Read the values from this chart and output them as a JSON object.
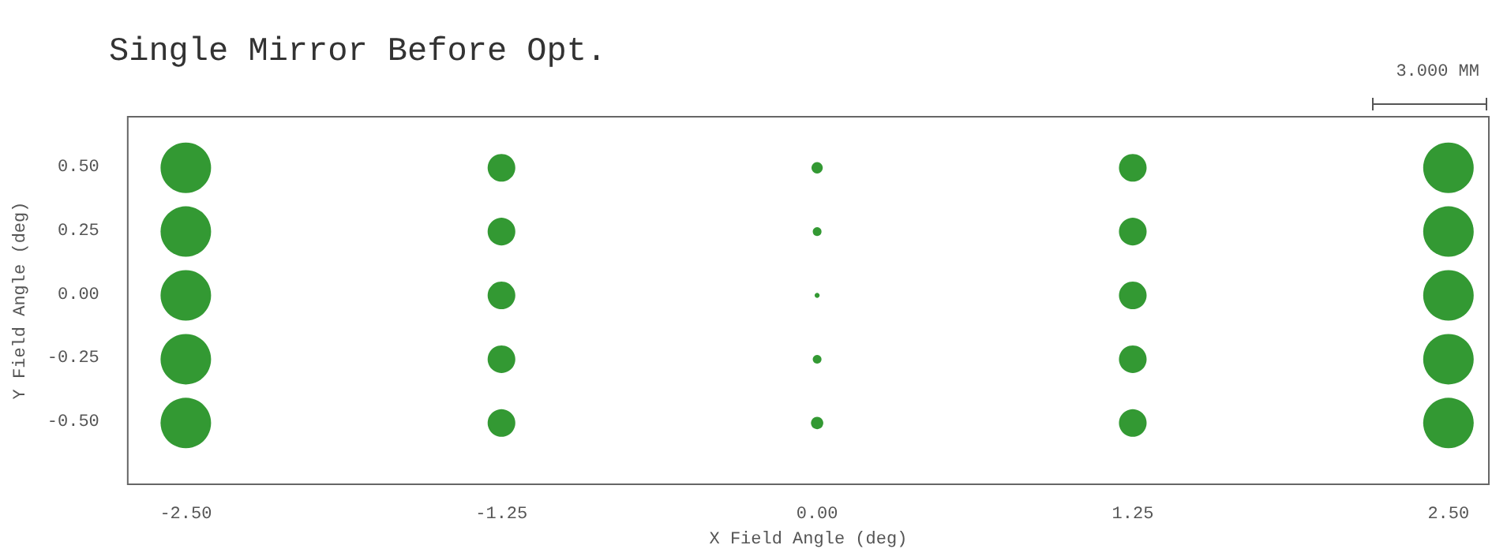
{
  "chart_data": {
    "type": "bubble",
    "title": "Single Mirror Before Opt.",
    "xlabel": "X Field Angle (deg)",
    "ylabel": "Y Field Angle (deg)",
    "annotations": [
      "3.000 MM"
    ],
    "series": [
      {
        "color": "#008000",
        "x": [
          -2.5,
          -2.5,
          -2.5,
          -2.5,
          -2.5,
          -1.25,
          -1.25,
          -1.25,
          -1.25,
          -1.25,
          0,
          0,
          0,
          0,
          0,
          1.25,
          1.25,
          1.25,
          1.25,
          1.25,
          2.5,
          2.5,
          2.5,
          2.5,
          2.5
        ],
        "values": [
          0.5,
          0.25,
          0,
          -0.25,
          -0.5,
          0.5,
          0.25,
          0,
          -0.25,
          -0.5,
          0.5,
          0.25,
          0,
          -0.25,
          -0.5,
          0.5,
          0.25,
          0,
          -0.25,
          -0.5,
          0.5,
          0.25,
          0,
          -0.25,
          -0.5
        ],
        "sizes": [
          1,
          1,
          1,
          1,
          1,
          0.3,
          0.3,
          0.3,
          0.3,
          0.3,
          0.05,
          0.03,
          0.01,
          0.03,
          0.06,
          0.3,
          0.3,
          0.3,
          0.3,
          0.3,
          1,
          1,
          1,
          1,
          1
        ]
      }
    ],
    "xlim": [
      -2.73,
      2.66
    ],
    "xticks": [
      {
        "value": -2.5,
        "label": "-2.50"
      },
      {
        "value": -1.25,
        "label": "-1.25"
      },
      {
        "value": 0,
        "label": "0.00"
      },
      {
        "value": 1.25,
        "label": "1.25"
      },
      {
        "value": 2.5,
        "label": "2.50"
      }
    ],
    "ylim": [
      -0.74,
      0.7
    ],
    "yticks": [
      {
        "value": -0.5,
        "label": "-0.50"
      },
      {
        "value": -0.25,
        "label": "-0.25"
      },
      {
        "value": 0,
        "label": "0.00"
      },
      {
        "value": 0.25,
        "label": "0.25"
      },
      {
        "value": 0.5,
        "label": "0.50"
      }
    ],
    "grid": false
  }
}
